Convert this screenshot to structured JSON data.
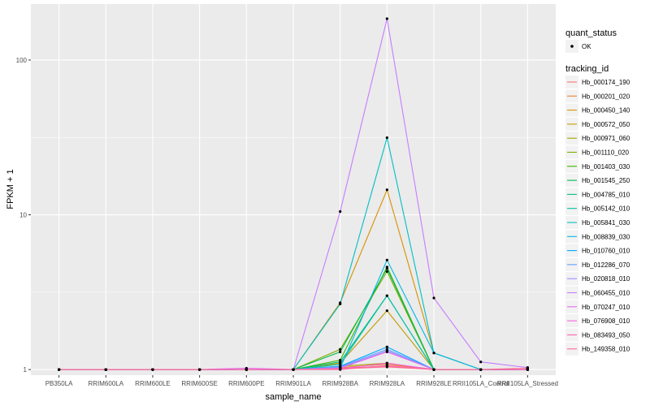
{
  "chart_data": {
    "type": "line",
    "xlabel": "sample_name",
    "ylabel": "FPKM + 1",
    "y_scale": "log",
    "ylim": [
      0.92,
      230
    ],
    "y_ticks": [
      1,
      10,
      100
    ],
    "y_tick_labels": [
      "1",
      "10",
      "100"
    ],
    "grid": true,
    "legend_position": "right",
    "categories": [
      "PB350LA",
      "RRIM600LA",
      "RRIM600LE",
      "RRIM600SE",
      "RRIM600PE",
      "RRIM901LA",
      "RRIM928BA",
      "RRIM928LA",
      "RRIM928LE",
      "RRII105LA_Control",
      "RRII105LA_Stressed"
    ],
    "point_legend": {
      "title": "quant_status",
      "items": [
        "OK"
      ]
    },
    "series_legend_title": "tracking_id",
    "series": [
      {
        "name": "Hb_000174_190",
        "color": "#F8766D",
        "values": [
          1,
          1,
          1,
          1,
          1,
          1,
          1.02,
          1.05,
          1,
          1,
          1
        ]
      },
      {
        "name": "Hb_000201_020",
        "color": "#EA8331",
        "values": [
          1,
          1,
          1,
          1,
          1,
          1,
          1.03,
          1.08,
          1,
          1,
          1
        ]
      },
      {
        "name": "Hb_000450_140",
        "color": "#D89000",
        "values": [
          1,
          1,
          1,
          1,
          1,
          1,
          2.7,
          14.5,
          1.28,
          1,
          1
        ]
      },
      {
        "name": "Hb_000572_050",
        "color": "#C09B00",
        "values": [
          1,
          1,
          1,
          1,
          1,
          1,
          1.1,
          2.4,
          1,
          1,
          1
        ]
      },
      {
        "name": "Hb_000971_060",
        "color": "#A3A500",
        "values": [
          1,
          1,
          1,
          1,
          1,
          1,
          1.05,
          1.1,
          1,
          1,
          1
        ]
      },
      {
        "name": "Hb_001110_020",
        "color": "#7CAE00",
        "values": [
          1,
          1,
          1,
          1,
          1,
          1,
          1.35,
          4.3,
          1,
          1,
          1
        ]
      },
      {
        "name": "Hb_001403_030",
        "color": "#39B600",
        "values": [
          1,
          1,
          1,
          1,
          1,
          1,
          1.15,
          4.6,
          1,
          1,
          1
        ]
      },
      {
        "name": "Hb_001545_250",
        "color": "#00BB4E",
        "values": [
          1,
          1,
          1,
          1,
          1,
          1,
          1.3,
          4.5,
          1,
          1,
          1
        ]
      },
      {
        "name": "Hb_004785_010",
        "color": "#00BF7D",
        "values": [
          1,
          1,
          1,
          1,
          1,
          1,
          1.12,
          3.0,
          1,
          1,
          1
        ]
      },
      {
        "name": "Hb_005142_010",
        "color": "#00C1A3",
        "values": [
          1,
          1,
          1,
          1,
          1,
          1,
          1.08,
          3.0,
          1,
          1,
          1
        ]
      },
      {
        "name": "Hb_005841_030",
        "color": "#00BFC4",
        "values": [
          1,
          1,
          1,
          1,
          1,
          1,
          2.65,
          31.5,
          1.28,
          1,
          1
        ]
      },
      {
        "name": "Hb_008839_030",
        "color": "#00B8E5",
        "values": [
          1,
          1,
          1,
          1,
          1,
          1,
          1.02,
          5.1,
          1.28,
          1,
          1
        ]
      },
      {
        "name": "Hb_010760_010",
        "color": "#00A9FF",
        "values": [
          1,
          1,
          1,
          1,
          1,
          1,
          1.05,
          1.4,
          1,
          1,
          1
        ]
      },
      {
        "name": "Hb_012286_070",
        "color": "#619CFF",
        "values": [
          1,
          1,
          1,
          1,
          1,
          1,
          1.04,
          1.35,
          1,
          1,
          1
        ]
      },
      {
        "name": "Hb_020818_010",
        "color": "#9F8CFF",
        "values": [
          1,
          1,
          1,
          1,
          1,
          1,
          1.03,
          1.32,
          1,
          1,
          1
        ]
      },
      {
        "name": "Hb_060455_010",
        "color": "#C77CFF",
        "values": [
          1,
          1,
          1,
          1,
          1,
          1,
          10.5,
          185,
          2.9,
          1.12,
          1.03
        ]
      },
      {
        "name": "Hb_070247_010",
        "color": "#E76BF3",
        "values": [
          1,
          1,
          1,
          1,
          1.02,
          1,
          1.02,
          1.3,
          1,
          1,
          1
        ]
      },
      {
        "name": "Hb_076908_010",
        "color": "#F763E0",
        "values": [
          1,
          1,
          1,
          1,
          1,
          1,
          1.01,
          1.1,
          1,
          1,
          1
        ]
      },
      {
        "name": "Hb_083493_050",
        "color": "#FF65AC",
        "values": [
          1,
          1,
          1,
          1,
          1,
          1,
          1.0,
          1.06,
          1,
          1,
          1
        ]
      },
      {
        "name": "Hb_149358_010",
        "color": "#FF6C91",
        "values": [
          1,
          1,
          1,
          1,
          1,
          1,
          1.01,
          1.04,
          1,
          1,
          1.02
        ]
      }
    ]
  }
}
